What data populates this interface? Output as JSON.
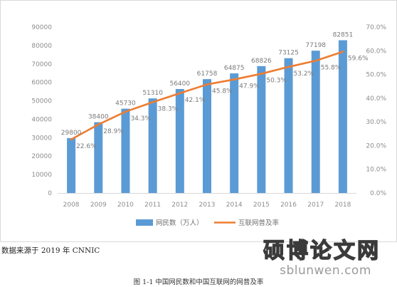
{
  "chart_data": {
    "type": "bar",
    "categories": [
      "2008",
      "2009",
      "2010",
      "2011",
      "2012",
      "2013",
      "2014",
      "2015",
      "2016",
      "2017",
      "2018"
    ],
    "series": [
      {
        "name": "网民数（万人）",
        "type": "bar",
        "axis": "left",
        "color": "#5b9bd5",
        "values": [
          29800,
          38400,
          45730,
          51310,
          56400,
          61758,
          64875,
          68826,
          73125,
          77198,
          82851
        ],
        "labels": [
          "29800",
          "38400",
          "45730",
          "51310",
          "56400",
          "61758",
          "64875",
          "68826",
          "73125",
          "77198",
          "82851"
        ]
      },
      {
        "name": "互联网普及率",
        "type": "line",
        "axis": "right",
        "color": "#ed7d31",
        "values": [
          22.6,
          28.9,
          34.3,
          38.3,
          42.1,
          45.8,
          47.9,
          50.3,
          53.2,
          55.8,
          59.6
        ],
        "labels": [
          "22.6%",
          "28.9%",
          "34.3%",
          "38.3%",
          "42.1%",
          "45.8%",
          "47.9%",
          "50.3%",
          "53.2%",
          "55.8%",
          "59.6%"
        ]
      }
    ],
    "y_left": {
      "min": 0,
      "max": 90000,
      "ticks": [
        "0",
        "10000",
        "20000",
        "30000",
        "40000",
        "50000",
        "60000",
        "70000",
        "80000",
        "90000"
      ]
    },
    "y_right": {
      "min": 0,
      "max": 70,
      "ticks": [
        "0.0%",
        "10.0%",
        "20.0%",
        "30.0%",
        "40.0%",
        "50.0%",
        "60.0%",
        "70.0%"
      ]
    },
    "grid": false,
    "legend_position": "bottom",
    "title": "",
    "xlabel": "",
    "ylabel": ""
  },
  "source_note": "数据来源于 2019 年 CNNIC",
  "caption": "图 1-1 中国网民数和中国互联网的网普及率",
  "watermark": {
    "text_cn": "硕博论文网",
    "url": "sblunwen.com"
  }
}
